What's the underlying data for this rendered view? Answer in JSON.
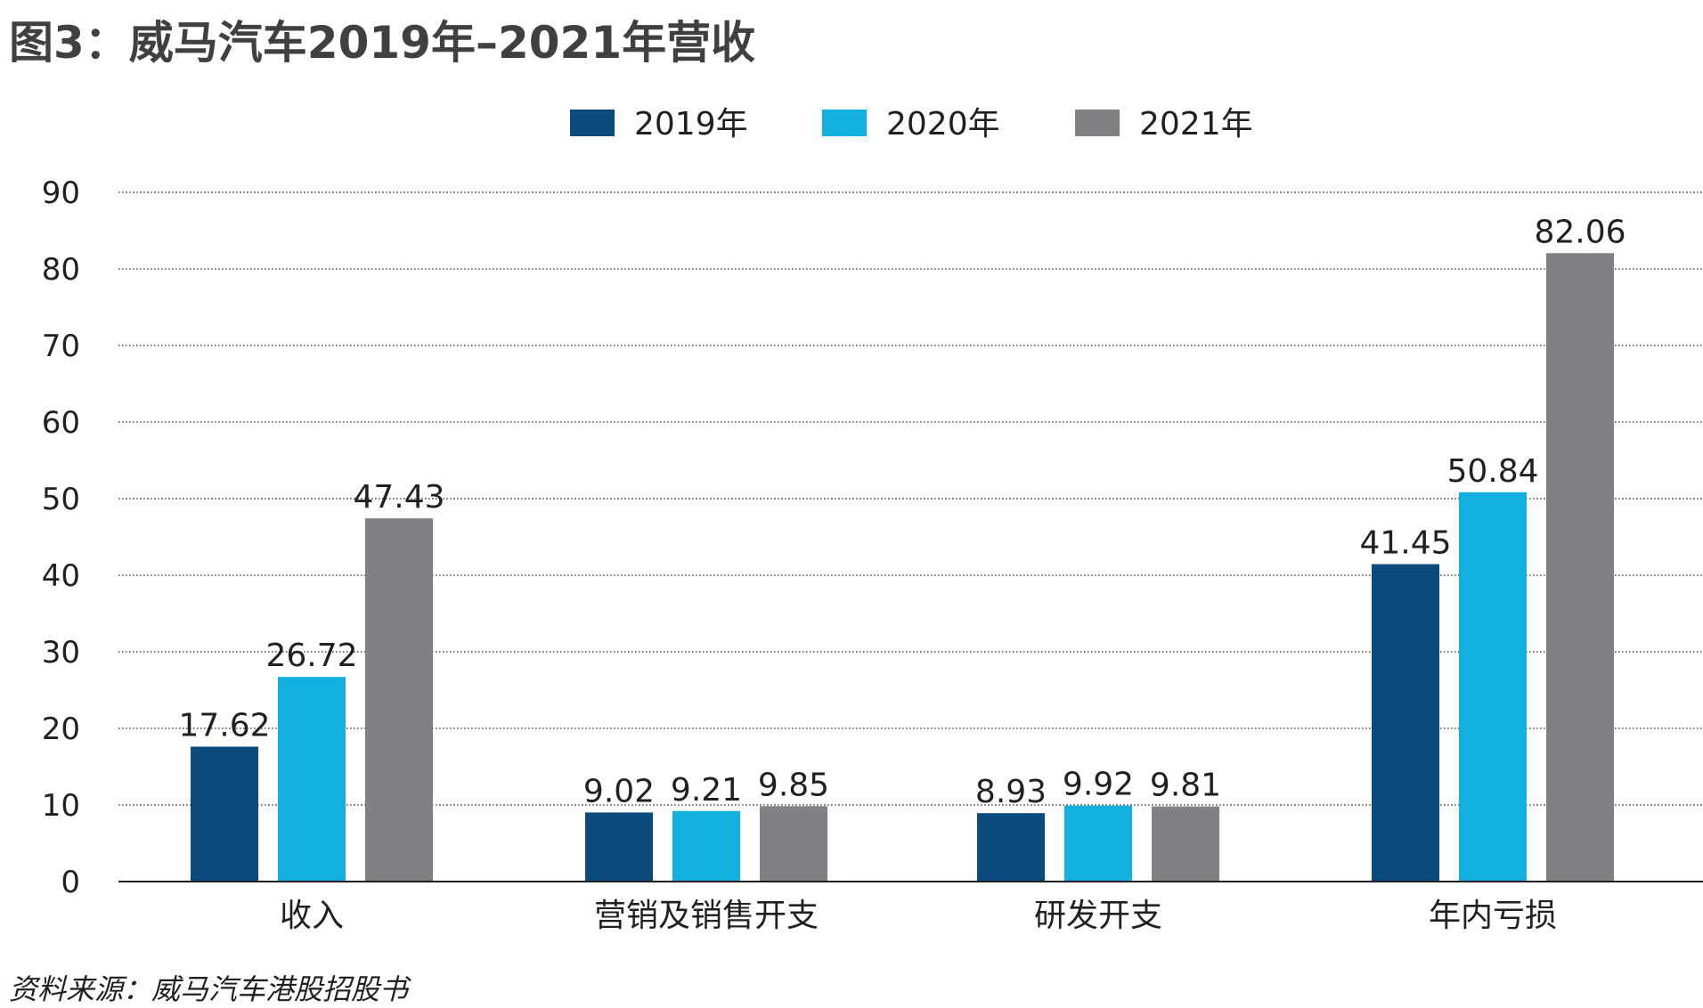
{
  "chart_data": {
    "type": "bar",
    "title": "图3：威马汽车2019年–2021年营收",
    "categories": [
      "收入",
      "营销及销售开支",
      "研发开支",
      "年内亏损"
    ],
    "series": [
      {
        "name": "2019年",
        "color": "#0b4a7d",
        "values": [
          17.62,
          9.02,
          8.93,
          41.45
        ]
      },
      {
        "name": "2020年",
        "color": "#12afdf",
        "values": [
          26.72,
          9.21,
          9.92,
          50.84
        ]
      },
      {
        "name": "2021年",
        "color": "#808184",
        "values": [
          47.43,
          9.85,
          9.81,
          82.06
        ]
      }
    ],
    "ylim": [
      0,
      90
    ],
    "yticks": [
      0,
      10,
      20,
      30,
      40,
      50,
      60,
      70,
      80,
      90
    ],
    "xlabel": "",
    "ylabel": "",
    "grid": "horizontal dotted",
    "legend_position": "top-center",
    "data_labels": true,
    "source": "资料来源：威马汽车港股招股书"
  }
}
